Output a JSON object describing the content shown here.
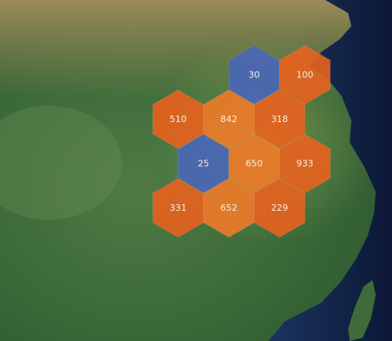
{
  "map": {
    "basemap": "satellite-imagery",
    "colors": {
      "low": "#4a66b8",
      "mid": "#e8621e",
      "high": "#ee7a28",
      "land_dark": "#2f5f34",
      "land_light": "#6f8f4a",
      "arid": "#a89660",
      "sea": "#0f1d3e"
    },
    "cells": [
      {
        "id": "c1",
        "value": 30,
        "label": "30",
        "row": 0,
        "col": 1
      },
      {
        "id": "c2",
        "value": 100,
        "label": "100",
        "row": 0,
        "col": 2
      },
      {
        "id": "c3",
        "value": 510,
        "label": "510",
        "row": 1,
        "col": 0
      },
      {
        "id": "c4",
        "value": 842,
        "label": "842",
        "row": 1,
        "col": 1
      },
      {
        "id": "c5",
        "value": 318,
        "label": "318",
        "row": 1,
        "col": 2
      },
      {
        "id": "c6",
        "value": 25,
        "label": "25",
        "row": 2,
        "col": 0
      },
      {
        "id": "c7",
        "value": 650,
        "label": "650",
        "row": 2,
        "col": 1
      },
      {
        "id": "c8",
        "value": 933,
        "label": "933",
        "row": 2,
        "col": 2
      },
      {
        "id": "c9",
        "value": 331,
        "label": "331",
        "row": 3,
        "col": 0
      },
      {
        "id": "c10",
        "value": 652,
        "label": "652",
        "row": 3,
        "col": 1
      },
      {
        "id": "c11",
        "value": 229,
        "label": "229",
        "row": 3,
        "col": 2
      }
    ]
  }
}
